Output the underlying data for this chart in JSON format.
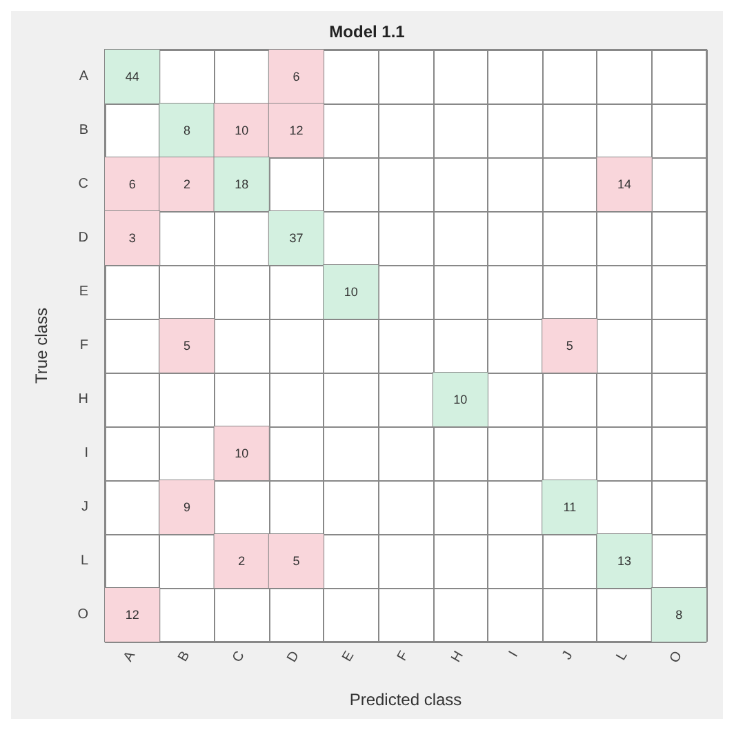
{
  "chart_data": {
    "type": "heatmap",
    "title": "Model 1.1",
    "xlabel": "Predicted class",
    "ylabel": "True class",
    "categories": [
      "A",
      "B",
      "C",
      "D",
      "E",
      "F",
      "H",
      "I",
      "J",
      "L",
      "O"
    ],
    "y_categories": [
      "A",
      "B",
      "C",
      "D",
      "E",
      "F",
      "H",
      "I",
      "J",
      "L",
      "O"
    ],
    "colors": [
      "#d3f0e0",
      "#f9d6db"
    ],
    "cells": [
      [
        44,
        null,
        null,
        6,
        null,
        null,
        null,
        null,
        null,
        null,
        null
      ],
      [
        null,
        8,
        10,
        12,
        null,
        null,
        null,
        null,
        null,
        null,
        null
      ],
      [
        6,
        2,
        18,
        null,
        null,
        null,
        null,
        null,
        null,
        14,
        null
      ],
      [
        3,
        null,
        null,
        37,
        null,
        null,
        null,
        null,
        null,
        null,
        null
      ],
      [
        null,
        null,
        null,
        null,
        10,
        null,
        null,
        null,
        null,
        null,
        null
      ],
      [
        null,
        5,
        null,
        null,
        null,
        null,
        null,
        null,
        5,
        null,
        null
      ],
      [
        null,
        null,
        null,
        null,
        null,
        null,
        10,
        null,
        null,
        null,
        null
      ],
      [
        null,
        null,
        10,
        null,
        null,
        null,
        null,
        null,
        null,
        null,
        null
      ],
      [
        null,
        9,
        null,
        null,
        null,
        null,
        null,
        null,
        11,
        null,
        null
      ],
      [
        null,
        null,
        2,
        5,
        null,
        null,
        null,
        null,
        null,
        13,
        null
      ],
      [
        12,
        null,
        null,
        null,
        null,
        null,
        null,
        null,
        null,
        null,
        8
      ]
    ],
    "data_labels": true,
    "grid": true
  }
}
